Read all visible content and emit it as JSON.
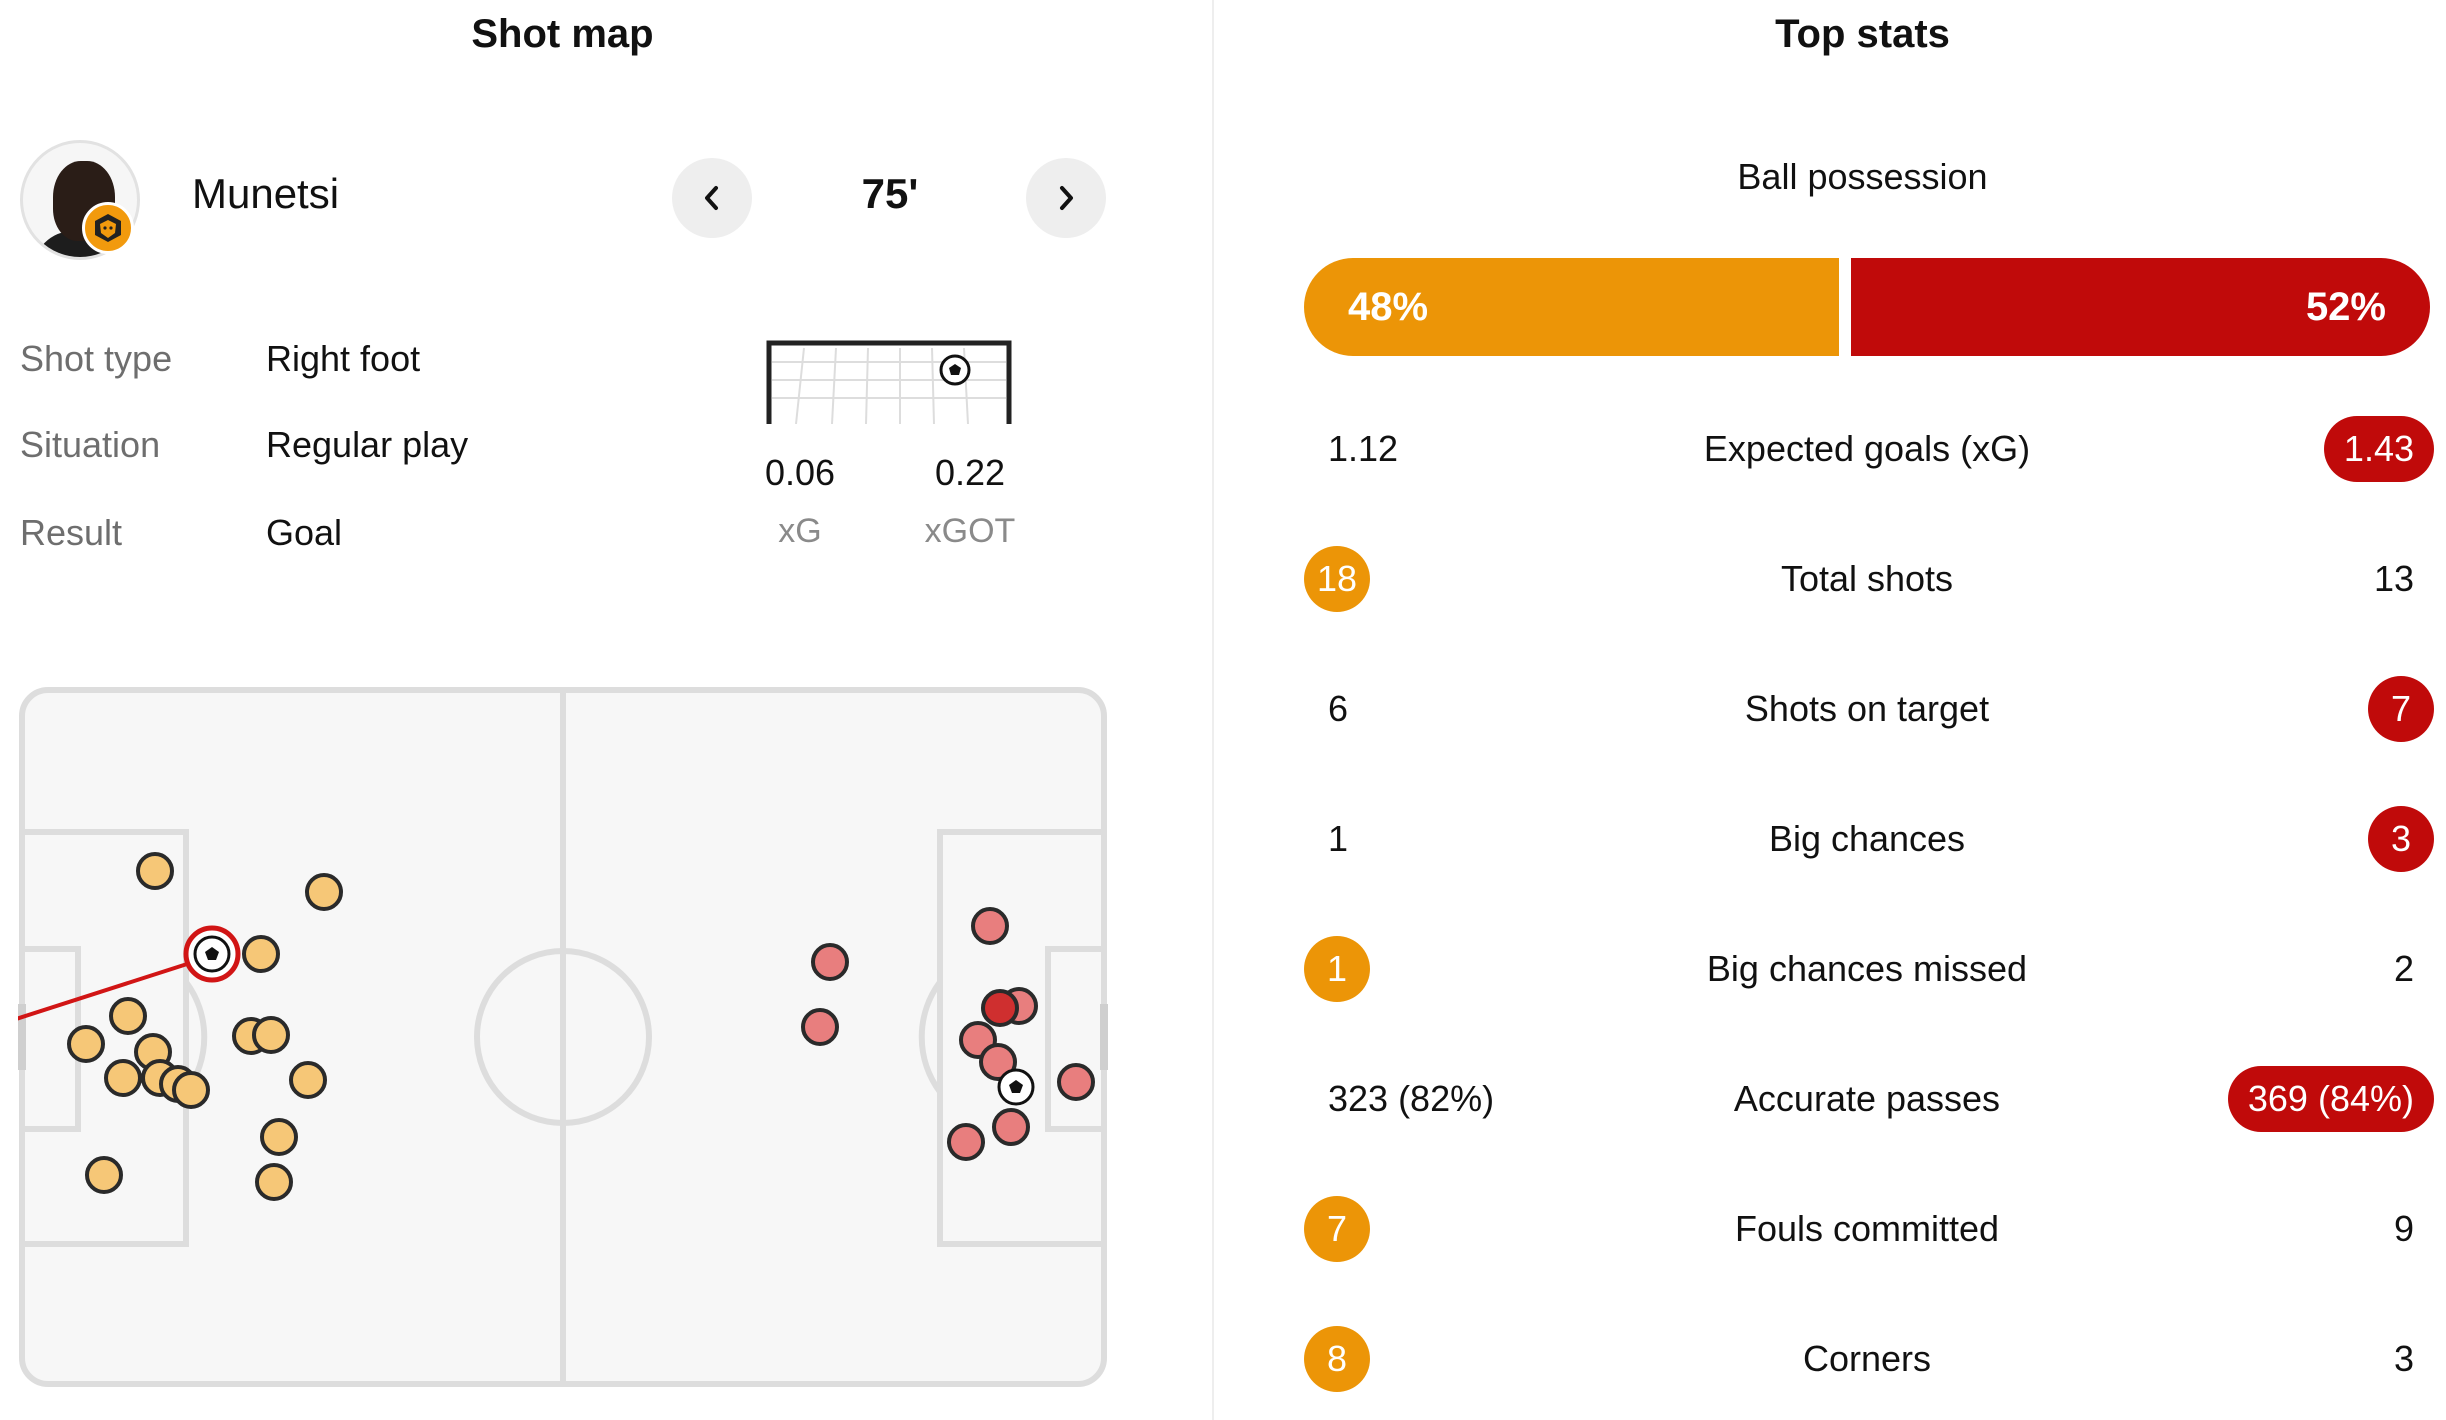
{
  "shot_map": {
    "title": "Shot map",
    "player": {
      "name": "Munetsi",
      "avatar_icon": "player-avatar",
      "team_badge_icon": "wolves-badge-icon"
    },
    "minute": "75'",
    "details": [
      {
        "label": "Shot type",
        "value": "Right foot"
      },
      {
        "label": "Situation",
        "value": "Regular play"
      },
      {
        "label": "Result",
        "value": "Goal"
      }
    ],
    "xg": {
      "value": "0.06",
      "label": "xG"
    },
    "xgot": {
      "value": "0.22",
      "label": "xGOT"
    },
    "colors": {
      "home_shot": "#f6c777",
      "away_shot": "#e87e7e",
      "highlight": "#d11515"
    }
  },
  "top_stats": {
    "title": "Top stats",
    "possession": {
      "label": "Ball possession",
      "home": "48%",
      "away": "52%",
      "home_value": 48,
      "away_value": 52
    },
    "rows": [
      {
        "label": "Expected goals (xG)",
        "home": "1.12",
        "away": "1.43",
        "highlight": "away"
      },
      {
        "label": "Total shots",
        "home": "18",
        "away": "13",
        "highlight": "home"
      },
      {
        "label": "Shots on target",
        "home": "6",
        "away": "7",
        "highlight": "away"
      },
      {
        "label": "Big chances",
        "home": "1",
        "away": "3",
        "highlight": "away"
      },
      {
        "label": "Big chances missed",
        "home": "1",
        "away": "2",
        "highlight": "home"
      },
      {
        "label": "Accurate passes",
        "home": "323 (82%)",
        "away": "369 (84%)",
        "highlight": "away"
      },
      {
        "label": "Fouls committed",
        "home": "7",
        "away": "9",
        "highlight": "home"
      },
      {
        "label": "Corners",
        "home": "8",
        "away": "3",
        "highlight": "home"
      }
    ],
    "colors": {
      "home": "#ec9507",
      "away": "#c00a0a"
    }
  }
}
